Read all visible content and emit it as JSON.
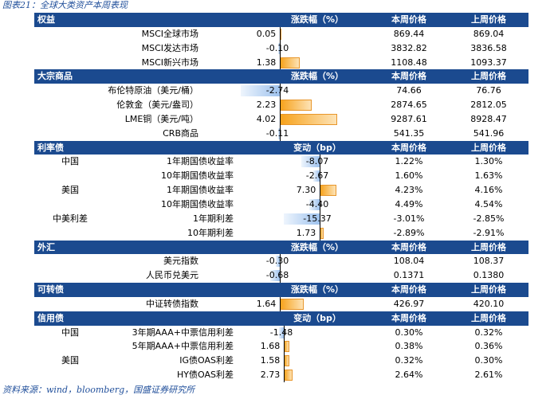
{
  "title": "图表21：全球大类资产本周表现",
  "footer": "资料来源：wind，bloomberg，国盛证券研究所",
  "colors": {
    "header_bg": "#1b4a8f",
    "positive_bar": "#f7a21b",
    "negative_bar": "#9ec2ee",
    "title_text": "#1f4e9a"
  },
  "sections": [
    {
      "name": "权益",
      "col2": "涨跌幅（%）",
      "col3": "本周价格",
      "col4": "上周价格",
      "rows": [
        {
          "group": "",
          "name": "MSCI全球市场",
          "value": "0.05",
          "num": 0.05,
          "this_week": "869.44",
          "last_week": "869.04"
        },
        {
          "group": "",
          "name": "MSCI发达市场",
          "value": "-0.10",
          "num": -0.1,
          "this_week": "3832.82",
          "last_week": "3836.58"
        },
        {
          "group": "",
          "name": "MSCI新兴市场",
          "value": "1.38",
          "num": 1.38,
          "this_week": "1108.48",
          "last_week": "1093.37"
        }
      ]
    },
    {
      "name": "大宗商品",
      "col2": "涨跌幅（%）",
      "col3": "本周价格",
      "col4": "上周价格",
      "rows": [
        {
          "group": "",
          "name": "布伦特原油（美元/桶）",
          "value": "-2.74",
          "num": -2.74,
          "this_week": "74.66",
          "last_week": "76.76"
        },
        {
          "group": "",
          "name": "伦敦金（美元/盎司）",
          "value": "2.23",
          "num": 2.23,
          "this_week": "2874.65",
          "last_week": "2812.05"
        },
        {
          "group": "",
          "name": "LME铜（美元/吨）",
          "value": "4.02",
          "num": 4.02,
          "this_week": "9287.61",
          "last_week": "8928.47"
        },
        {
          "group": "",
          "name": "CRB商品",
          "value": "-0.11",
          "num": -0.11,
          "this_week": "541.35",
          "last_week": "541.96"
        }
      ]
    },
    {
      "name": "利率债",
      "col2": "变动（bp）",
      "col3": "本周价格",
      "col4": "上周价格",
      "rows": [
        {
          "group": "中国",
          "name": "1年期国债收益率",
          "value": "-8.07",
          "num": -8.07,
          "this_week": "1.22%",
          "last_week": "1.30%"
        },
        {
          "group": "",
          "name": "10年期国债收益率",
          "value": "-2.67",
          "num": -2.67,
          "this_week": "1.60%",
          "last_week": "1.63%"
        },
        {
          "group": "美国",
          "name": "1年期国债收益率",
          "value": "7.30",
          "num": 7.3,
          "this_week": "4.23%",
          "last_week": "4.16%"
        },
        {
          "group": "",
          "name": "10年期国债收益率",
          "value": "-4.40",
          "num": -4.4,
          "this_week": "4.49%",
          "last_week": "4.54%"
        },
        {
          "group": "中美利差",
          "name": "1年期利差",
          "value": "-15.37",
          "num": -15.37,
          "this_week": "-3.01%",
          "last_week": "-2.85%"
        },
        {
          "group": "",
          "name": "10年期利差",
          "value": "1.73",
          "num": 1.73,
          "this_week": "-2.89%",
          "last_week": "-2.91%"
        }
      ]
    },
    {
      "name": "外汇",
      "col2": "涨跌幅（%）",
      "col3": "本周价格",
      "col4": "上周价格",
      "rows": [
        {
          "group": "",
          "name": "美元指数",
          "value": "-0.30",
          "num": -0.3,
          "this_week": "108.04",
          "last_week": "108.37"
        },
        {
          "group": "",
          "name": "人民币兑美元",
          "value": "-0.68",
          "num": -0.68,
          "this_week": "0.1371",
          "last_week": "0.1380"
        }
      ]
    },
    {
      "name": "可转债",
      "col2": "涨跌幅（%）",
      "col3": "本周价格",
      "col4": "上周价格",
      "rows": [
        {
          "group": "",
          "name": "中证转债指数",
          "value": "1.64",
          "num": 1.64,
          "this_week": "426.97",
          "last_week": "420.10"
        }
      ]
    },
    {
      "name": "信用债",
      "col2": "变动（bp）",
      "col3": "本周价格",
      "col4": "上周价格",
      "rows": [
        {
          "group": "中国",
          "name": "3年期AAA+中票信用利差",
          "value": "-1.48",
          "num": -1.48,
          "this_week": "0.30%",
          "last_week": "0.32%"
        },
        {
          "group": "",
          "name": "5年期AAA+中票信用利差",
          "value": "1.68",
          "num": 1.68,
          "this_week": "0.38%",
          "last_week": "0.36%"
        },
        {
          "group": "美国",
          "name": "IG债OAS利差",
          "value": "1.58",
          "num": 1.58,
          "this_week": "0.32%",
          "last_week": "0.30%"
        },
        {
          "group": "",
          "name": "HY债OAS利差",
          "value": "2.73",
          "num": 2.73,
          "this_week": "2.64%",
          "last_week": "2.61%"
        }
      ]
    }
  ]
}
